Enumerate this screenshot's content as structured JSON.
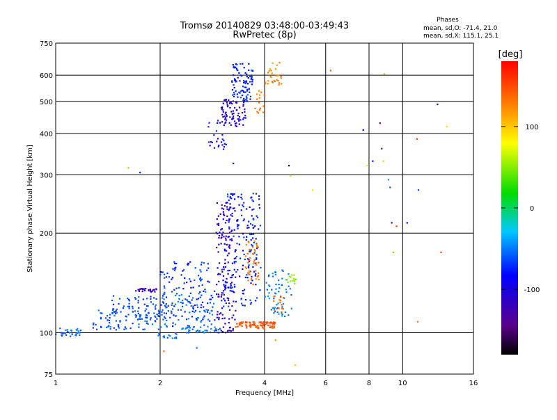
{
  "chart_data": {
    "type": "scatter",
    "title": "Tromsø 20140829 03:48:00-03:49:43",
    "subtitle": "RwPretec (8p)",
    "xlabel": "Frequency [MHz]",
    "ylabel": "Stationary phase Virtual Height [km]",
    "x_scale": "log",
    "y_scale": "log",
    "xlim": [
      1,
      16
    ],
    "ylim": [
      75,
      750
    ],
    "x_ticks": [
      1,
      2,
      4,
      6,
      8,
      10,
      16
    ],
    "x_tick_labels": [
      "1",
      "2",
      "4",
      "6",
      "8",
      "10",
      "16"
    ],
    "y_ticks": [
      75,
      100,
      200,
      300,
      400,
      500,
      600,
      750
    ],
    "y_tick_labels": [
      "75",
      "100",
      "200",
      "300",
      "400",
      "500",
      "600",
      "750"
    ],
    "grid": true,
    "phases": {
      "heading": "Phases",
      "line_o": "mean, sd,O: -71.4, 21.0",
      "line_x": "mean, sd,X: 115.1, 25.1"
    },
    "colorbar": {
      "label": "[deg]",
      "range": [
        -180,
        180
      ],
      "ticks": [
        -100,
        0,
        100
      ],
      "tick_labels": [
        "-100",
        "0",
        "100"
      ]
    },
    "clusters": [
      {
        "x": [
          1.0,
          1.18
        ],
        "y": [
          97,
          104
        ],
        "phase": [
          -40,
          -70
        ],
        "n": 30
      },
      {
        "x": [
          1.28,
          2.0
        ],
        "y": [
          102,
          118
        ],
        "phase": [
          -50,
          -70
        ],
        "n": 90
      },
      {
        "x": [
          1.45,
          2.1
        ],
        "y": [
          112,
          130
        ],
        "phase": [
          -55,
          -75
        ],
        "n": 60
      },
      {
        "x": [
          1.7,
          1.95
        ],
        "y": [
          133,
          136
        ],
        "phase": [
          -110,
          -125
        ],
        "n": 25
      },
      {
        "x": [
          1.95,
          2.25
        ],
        "y": [
          96,
          100
        ],
        "phase": [
          -40,
          -60
        ],
        "n": 15
      },
      {
        "x": [
          2.0,
          2.9
        ],
        "y": [
          104,
          135
        ],
        "phase": [
          -45,
          -80
        ],
        "n": 130
      },
      {
        "x": [
          2.0,
          2.8
        ],
        "y": [
          135,
          165
        ],
        "phase": [
          -55,
          -85
        ],
        "n": 60
      },
      {
        "x": [
          2.3,
          3.0
        ],
        "y": [
          100,
          104
        ],
        "phase": [
          -40,
          -60
        ],
        "n": 40
      },
      {
        "x": [
          2.9,
          3.3
        ],
        "y": [
          100,
          250
        ],
        "phase": [
          -90,
          -135
        ],
        "n": 160
      },
      {
        "x": [
          3.0,
          3.9
        ],
        "y": [
          120,
          200
        ],
        "phase": [
          -60,
          -95
        ],
        "n": 110
      },
      {
        "x": [
          3.1,
          3.9
        ],
        "y": [
          205,
          265
        ],
        "phase": [
          -60,
          -90
        ],
        "n": 70
      },
      {
        "x": [
          3.5,
          3.85
        ],
        "y": [
          140,
          190
        ],
        "phase": [
          120,
          140
        ],
        "n": 45
      },
      {
        "x": [
          3.3,
          4.3
        ],
        "y": [
          103,
          108
        ],
        "phase": [
          135,
          155
        ],
        "n": 90
      },
      {
        "x": [
          4.0,
          4.8
        ],
        "y": [
          112,
          155
        ],
        "phase": [
          -40,
          -60
        ],
        "n": 60
      },
      {
        "x": [
          4.6,
          4.95
        ],
        "y": [
          140,
          150
        ],
        "phase": [
          45,
          60
        ],
        "n": 15
      },
      {
        "x": [
          4.25,
          4.55
        ],
        "y": [
          115,
          130
        ],
        "phase": [
          130,
          150
        ],
        "n": 15
      },
      {
        "x": [
          2.75,
          3.1
        ],
        "y": [
          355,
          440
        ],
        "phase": [
          -70,
          -100
        ],
        "n": 25
      },
      {
        "x": [
          3.0,
          3.55
        ],
        "y": [
          420,
          510
        ],
        "phase": [
          -90,
          -120
        ],
        "n": 80
      },
      {
        "x": [
          3.2,
          3.7
        ],
        "y": [
          500,
          650
        ],
        "phase": [
          -60,
          -90
        ],
        "n": 90
      },
      {
        "x": [
          3.75,
          4.0
        ],
        "y": [
          450,
          540
        ],
        "phase": [
          120,
          140
        ],
        "n": 15
      },
      {
        "x": [
          4.0,
          4.5
        ],
        "y": [
          560,
          660
        ],
        "phase": [
          110,
          135
        ],
        "n": 30
      }
    ],
    "sparse_points": [
      {
        "x": 1.62,
        "y": 315,
        "phase": 50
      },
      {
        "x": 1.75,
        "y": 305,
        "phase": -75
      },
      {
        "x": 3.25,
        "y": 325,
        "phase": -110
      },
      {
        "x": 4.7,
        "y": 320,
        "phase": -170
      },
      {
        "x": 4.75,
        "y": 298,
        "phase": 60
      },
      {
        "x": 5.5,
        "y": 270,
        "phase": 90
      },
      {
        "x": 6.2,
        "y": 620,
        "phase": 150
      },
      {
        "x": 7.7,
        "y": 410,
        "phase": -100
      },
      {
        "x": 7.9,
        "y": 320,
        "phase": 90
      },
      {
        "x": 8.2,
        "y": 330,
        "phase": -95
      },
      {
        "x": 8.6,
        "y": 430,
        "phase": -130
      },
      {
        "x": 8.7,
        "y": 360,
        "phase": -140
      },
      {
        "x": 8.8,
        "y": 330,
        "phase": 100
      },
      {
        "x": 8.85,
        "y": 605,
        "phase": 110
      },
      {
        "x": 9.1,
        "y": 290,
        "phase": -40
      },
      {
        "x": 9.2,
        "y": 275,
        "phase": -60
      },
      {
        "x": 9.3,
        "y": 215,
        "phase": -120
      },
      {
        "x": 9.6,
        "y": 210,
        "phase": 160
      },
      {
        "x": 10.3,
        "y": 215,
        "phase": -85
      },
      {
        "x": 11.0,
        "y": 385,
        "phase": 155
      },
      {
        "x": 11.1,
        "y": 270,
        "phase": -65
      },
      {
        "x": 11.05,
        "y": 108,
        "phase": 130
      },
      {
        "x": 12.6,
        "y": 490,
        "phase": -105
      },
      {
        "x": 12.9,
        "y": 175,
        "phase": 150
      },
      {
        "x": 13.4,
        "y": 420,
        "phase": 95
      },
      {
        "x": 9.4,
        "y": 175,
        "phase": 115
      },
      {
        "x": 4.9,
        "y": 80,
        "phase": 100
      },
      {
        "x": 2.05,
        "y": 88,
        "phase": 140
      },
      {
        "x": 2.55,
        "y": 90,
        "phase": -55
      },
      {
        "x": 4.3,
        "y": 95,
        "phase": 120
      }
    ]
  }
}
